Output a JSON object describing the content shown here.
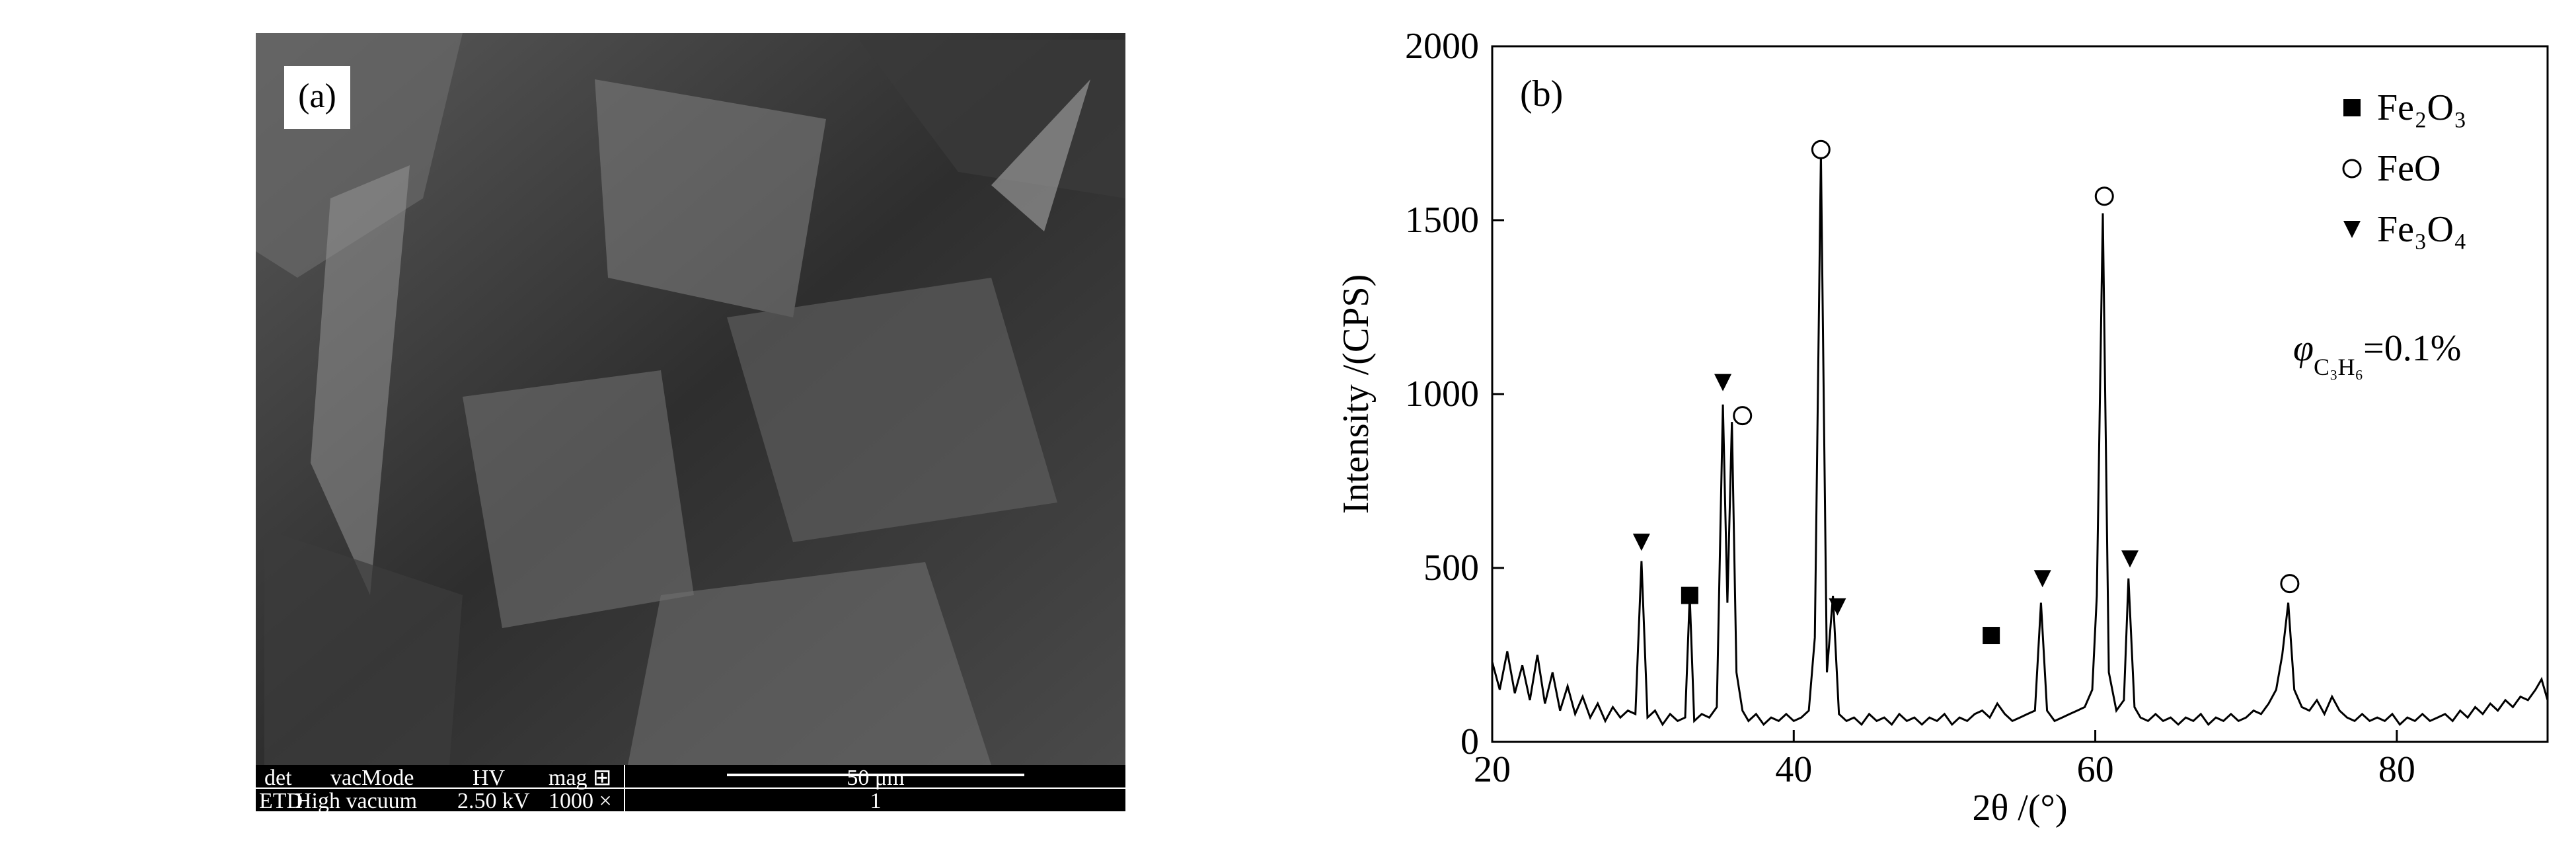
{
  "panel_a": {
    "label": "(a)",
    "info_bar": {
      "head": [
        "det",
        "vacMode",
        "HV",
        "mag ⊞"
      ],
      "row": [
        "ETD",
        "High vacuum",
        "2.50 kV",
        "1000 ×"
      ],
      "scale": "50 μm",
      "scale_row": "1"
    }
  },
  "chart_data": {
    "type": "line",
    "panel_label": "(b)",
    "x_label": "2θ /(°)",
    "y_label": "Intensity /(CPS)",
    "color": "#000000",
    "xlim": [
      20,
      90
    ],
    "xticks": [
      20,
      40,
      60,
      80
    ],
    "ylim": [
      0,
      2000
    ],
    "yticks": [
      0,
      500,
      1000,
      1500,
      2000
    ],
    "x": [
      20,
      20.5,
      21,
      21.5,
      22,
      22.5,
      23,
      23.5,
      24,
      24.5,
      25,
      25.5,
      26,
      26.5,
      27,
      27.5,
      28,
      28.5,
      29,
      29.5,
      29.9,
      30.3,
      30.8,
      31.3,
      31.8,
      32.3,
      32.8,
      33.1,
      33.4,
      33.9,
      34.4,
      34.9,
      35.3,
      35.6,
      35.9,
      36.2,
      36.6,
      37,
      37.5,
      38,
      38.5,
      39,
      39.5,
      40,
      40.5,
      41,
      41.4,
      41.8,
      42.2,
      42.6,
      43,
      43.5,
      44,
      44.5,
      45,
      45.5,
      46,
      46.5,
      47,
      47.5,
      48,
      48.5,
      49,
      49.5,
      50,
      50.5,
      51,
      51.5,
      52,
      52.5,
      53,
      53.5,
      54,
      54.5,
      55,
      55.5,
      56,
      56.4,
      56.8,
      57.3,
      57.8,
      58.3,
      58.8,
      59.3,
      59.8,
      60.1,
      60.5,
      60.9,
      61.4,
      61.9,
      62.2,
      62.6,
      63,
      63.5,
      64,
      64.5,
      65,
      65.5,
      66,
      66.5,
      67,
      67.5,
      68,
      68.5,
      69,
      69.5,
      70,
      70.5,
      71,
      71.5,
      72,
      72.4,
      72.8,
      73.2,
      73.7,
      74.2,
      74.7,
      75.2,
      75.7,
      76.2,
      76.7,
      77.2,
      77.7,
      78.2,
      78.7,
      79.2,
      79.7,
      80.2,
      80.7,
      81.2,
      81.7,
      82.2,
      82.7,
      83.2,
      83.7,
      84.2,
      84.7,
      85.2,
      85.7,
      86.2,
      86.7,
      87.2,
      87.7,
      88.2,
      88.7,
      89.2,
      89.6,
      90
    ],
    "values": [
      230,
      150,
      260,
      140,
      220,
      120,
      250,
      110,
      200,
      90,
      160,
      80,
      130,
      70,
      110,
      60,
      100,
      70,
      90,
      80,
      520,
      70,
      90,
      50,
      80,
      60,
      70,
      420,
      60,
      80,
      70,
      100,
      970,
      400,
      920,
      200,
      90,
      60,
      80,
      50,
      70,
      60,
      80,
      60,
      70,
      90,
      300,
      1690,
      200,
      420,
      80,
      60,
      70,
      50,
      80,
      60,
      70,
      50,
      80,
      60,
      70,
      50,
      70,
      60,
      80,
      50,
      70,
      60,
      80,
      90,
      70,
      110,
      80,
      60,
      70,
      80,
      90,
      400,
      90,
      60,
      70,
      80,
      90,
      100,
      150,
      420,
      1520,
      200,
      90,
      120,
      470,
      100,
      70,
      60,
      80,
      60,
      70,
      50,
      70,
      60,
      80,
      50,
      70,
      60,
      80,
      60,
      70,
      90,
      80,
      110,
      150,
      250,
      400,
      150,
      100,
      90,
      120,
      80,
      130,
      90,
      70,
      60,
      80,
      60,
      70,
      60,
      80,
      50,
      70,
      60,
      80,
      60,
      70,
      80,
      60,
      90,
      70,
      100,
      80,
      110,
      90,
      120,
      100,
      130,
      120,
      150,
      180,
      120
    ],
    "phases": [
      {
        "name": "Fe₂O₃",
        "marker": "square",
        "x": [
          33.1,
          53.1
        ],
        "y": [
          421,
          306
        ]
      },
      {
        "name": "FeO",
        "marker": "circle",
        "x": [
          36.6,
          41.8,
          60.6,
          72.9
        ],
        "y": [
          938,
          1703,
          1569,
          455
        ]
      },
      {
        "name": "Fe₃O₄",
        "marker": "triangle",
        "x": [
          29.9,
          35.3,
          42.9,
          56.5,
          62.3
        ],
        "y": [
          574,
          1033,
          388,
          469,
          526
        ]
      }
    ],
    "annotation": {
      "symbol": "φ",
      "subscript": "C₃H₆",
      "text": "=0.1%"
    }
  }
}
